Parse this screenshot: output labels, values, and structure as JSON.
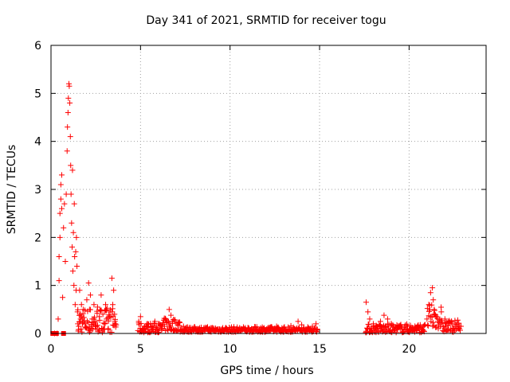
{
  "chart_data": {
    "type": "scatter",
    "title": "Day 341 of 2021, SRMTID for receiver togu",
    "xlabel": "GPS time / hours",
    "ylabel": "SRMTID / TECUs",
    "xlim": [
      0,
      24.3
    ],
    "ylim": [
      0,
      6
    ],
    "xticks": [
      0,
      5,
      10,
      15,
      20
    ],
    "yticks": [
      0,
      1,
      2,
      3,
      4,
      5,
      6
    ],
    "grid": true,
    "marker_color": "#ff0000",
    "series": [
      {
        "name": "SRMTID",
        "marker": "plus",
        "points": [
          [
            0.2,
            0.0
          ],
          [
            0.35,
            0.0
          ],
          [
            0.4,
            0.3
          ],
          [
            0.45,
            1.1
          ],
          [
            0.45,
            1.6
          ],
          [
            0.5,
            2.0
          ],
          [
            0.5,
            2.5
          ],
          [
            0.55,
            2.8
          ],
          [
            0.55,
            3.1
          ],
          [
            0.6,
            2.6
          ],
          [
            0.6,
            3.3
          ],
          [
            0.65,
            0.75
          ],
          [
            0.7,
            2.2
          ],
          [
            0.75,
            2.7
          ],
          [
            0.8,
            1.5
          ],
          [
            0.85,
            2.9
          ],
          [
            0.9,
            3.8
          ],
          [
            0.92,
            4.3
          ],
          [
            0.95,
            4.6
          ],
          [
            0.97,
            4.9
          ],
          [
            1.0,
            5.2
          ],
          [
            1.02,
            5.15
          ],
          [
            1.05,
            4.8
          ],
          [
            1.08,
            4.1
          ],
          [
            1.1,
            3.5
          ],
          [
            1.12,
            2.9
          ],
          [
            1.15,
            2.3
          ],
          [
            1.18,
            1.8
          ],
          [
            1.2,
            3.4
          ],
          [
            1.22,
            1.3
          ],
          [
            1.25,
            2.1
          ],
          [
            1.28,
            1.0
          ],
          [
            1.3,
            2.7
          ],
          [
            1.32,
            1.6
          ],
          [
            1.35,
            0.6
          ],
          [
            1.38,
            1.7
          ],
          [
            1.4,
            0.9
          ],
          [
            1.42,
            2.0
          ],
          [
            1.45,
            1.4
          ],
          [
            1.48,
            0.45
          ],
          [
            1.5,
            0.2
          ],
          [
            1.52,
            0.05
          ],
          [
            1.55,
            0.15
          ],
          [
            1.6,
            0.9
          ],
          [
            1.65,
            0.4
          ],
          [
            1.7,
            0.6
          ],
          [
            1.75,
            0.3
          ],
          [
            1.8,
            0.5
          ],
          [
            1.9,
            0.2
          ],
          [
            2.0,
            0.7
          ],
          [
            2.1,
            1.05
          ],
          [
            2.15,
            0.5
          ],
          [
            2.2,
            0.8
          ],
          [
            2.3,
            0.3
          ],
          [
            2.4,
            0.6
          ],
          [
            2.5,
            0.25
          ],
          [
            2.6,
            0.55
          ],
          [
            2.7,
            0.35
          ],
          [
            2.8,
            0.8
          ],
          [
            2.9,
            0.4
          ],
          [
            3.0,
            0.2
          ],
          [
            3.05,
            0.6
          ],
          [
            3.1,
            0.3
          ],
          [
            3.2,
            0.1
          ],
          [
            3.3,
            0.45
          ],
          [
            3.4,
            1.15
          ],
          [
            3.45,
            0.6
          ],
          [
            3.5,
            0.9
          ],
          [
            3.55,
            0.4
          ],
          [
            3.6,
            0.2
          ],
          [
            4.9,
            0.25
          ],
          [
            5.0,
            0.35
          ],
          [
            5.2,
            0.1
          ],
          [
            5.4,
            0.2
          ],
          [
            5.6,
            0.15
          ],
          [
            5.8,
            0.25
          ],
          [
            6.0,
            0.2
          ],
          [
            6.2,
            0.1
          ],
          [
            6.4,
            0.3
          ],
          [
            6.6,
            0.5
          ],
          [
            6.7,
            0.38
          ],
          [
            6.9,
            0.28
          ],
          [
            7.1,
            0.22
          ],
          [
            7.4,
            0.15
          ],
          [
            7.8,
            0.12
          ],
          [
            8.2,
            0.1
          ],
          [
            8.6,
            0.09
          ],
          [
            9.0,
            0.1
          ],
          [
            9.4,
            0.08
          ],
          [
            9.8,
            0.1
          ],
          [
            10.2,
            0.09
          ],
          [
            10.6,
            0.1
          ],
          [
            11.0,
            0.12
          ],
          [
            11.4,
            0.14
          ],
          [
            11.8,
            0.13
          ],
          [
            12.2,
            0.12
          ],
          [
            12.6,
            0.15
          ],
          [
            13.0,
            0.12
          ],
          [
            13.4,
            0.16
          ],
          [
            13.8,
            0.25
          ],
          [
            14.0,
            0.18
          ],
          [
            14.3,
            0.08
          ],
          [
            14.6,
            0.15
          ],
          [
            14.8,
            0.2
          ],
          [
            17.6,
            0.65
          ],
          [
            17.7,
            0.45
          ],
          [
            17.8,
            0.3
          ],
          [
            18.0,
            0.2
          ],
          [
            18.2,
            0.15
          ],
          [
            18.4,
            0.25
          ],
          [
            18.6,
            0.38
          ],
          [
            18.8,
            0.3
          ],
          [
            19.0,
            0.2
          ],
          [
            19.3,
            0.12
          ],
          [
            19.6,
            0.1
          ],
          [
            19.9,
            0.15
          ],
          [
            20.2,
            0.1
          ],
          [
            20.5,
            0.12
          ],
          [
            20.8,
            0.15
          ],
          [
            21.0,
            0.3
          ],
          [
            21.1,
            0.6
          ],
          [
            21.2,
            0.85
          ],
          [
            21.3,
            0.95
          ],
          [
            21.35,
            0.7
          ],
          [
            21.4,
            0.5
          ],
          [
            21.5,
            0.35
          ],
          [
            21.6,
            0.25
          ],
          [
            21.8,
            0.45
          ],
          [
            22.0,
            0.3
          ],
          [
            22.2,
            0.25
          ],
          [
            22.4,
            0.2
          ],
          [
            22.6,
            0.15
          ],
          [
            22.8,
            0.1
          ]
        ],
        "bands": [
          {
            "x0": 1.5,
            "x1": 3.65,
            "ymin": 0.02,
            "ymax": 0.55
          },
          {
            "x0": 4.85,
            "x1": 6.2,
            "ymin": 0.02,
            "ymax": 0.22
          },
          {
            "x0": 6.2,
            "x1": 7.2,
            "ymin": 0.05,
            "ymax": 0.32
          },
          {
            "x0": 7.2,
            "x1": 14.9,
            "ymin": 0.03,
            "ymax": 0.14
          },
          {
            "x0": 17.55,
            "x1": 20.9,
            "ymin": 0.02,
            "ymax": 0.2
          },
          {
            "x0": 21.0,
            "x1": 21.8,
            "ymin": 0.1,
            "ymax": 0.6
          },
          {
            "x0": 21.8,
            "x1": 22.9,
            "ymin": 0.03,
            "ymax": 0.28
          }
        ],
        "squares": [
          [
            0.1,
            0.0
          ],
          [
            0.3,
            0.0
          ],
          [
            0.7,
            0.0
          ]
        ]
      }
    ]
  }
}
